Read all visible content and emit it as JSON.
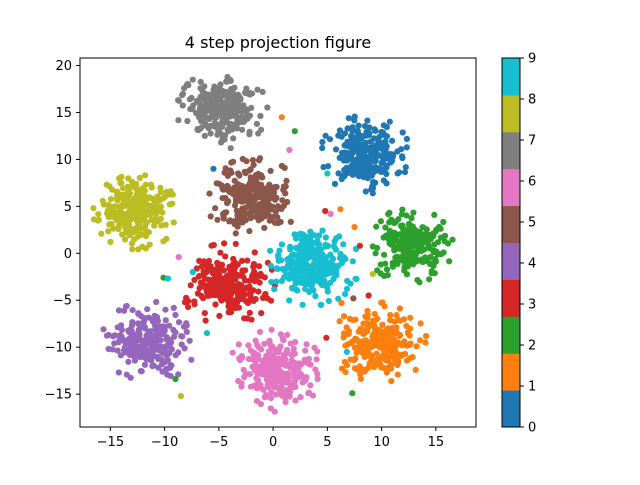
{
  "chart_data": {
    "type": "scatter",
    "title": "4 step projection figure",
    "xlabel": "",
    "ylabel": "",
    "xlim": [
      -17.8,
      18.7
    ],
    "ylim": [
      -18.5,
      20.8
    ],
    "xticks": [
      -15,
      -10,
      -5,
      0,
      5,
      10,
      15
    ],
    "yticks": [
      -15,
      -10,
      -5,
      0,
      5,
      10,
      15,
      20
    ],
    "grid": false,
    "colorbar": {
      "ticks": [
        0,
        1,
        2,
        3,
        4,
        5,
        6,
        7,
        8,
        9
      ],
      "colors": [
        "#1f77b4",
        "#ff7f0e",
        "#2ca02c",
        "#d62728",
        "#9467bd",
        "#8c564b",
        "#e377c2",
        "#7f7f7f",
        "#bcbd22",
        "#17becf"
      ]
    },
    "series": [
      {
        "class": 0,
        "center": [
          8.5,
          10.5
        ],
        "spread": 2.2,
        "count": 260
      },
      {
        "class": 1,
        "center": [
          9.8,
          -9.6
        ],
        "spread": 2.3,
        "count": 260
      },
      {
        "class": 2,
        "center": [
          12.6,
          0.8
        ],
        "spread": 2.1,
        "count": 260
      },
      {
        "class": 3,
        "center": [
          -4.2,
          -3.3
        ],
        "spread": 2.3,
        "count": 260
      },
      {
        "class": 4,
        "center": [
          -11.5,
          -9.5
        ],
        "spread": 2.3,
        "count": 260
      },
      {
        "class": 5,
        "center": [
          -1.8,
          5.8
        ],
        "spread": 2.3,
        "count": 260
      },
      {
        "class": 6,
        "center": [
          0.2,
          -12.5
        ],
        "spread": 2.3,
        "count": 260
      },
      {
        "class": 7,
        "center": [
          -4.7,
          15.3
        ],
        "spread": 2.2,
        "count": 260
      },
      {
        "class": 8,
        "center": [
          -12.6,
          4.4
        ],
        "spread": 2.1,
        "count": 260
      },
      {
        "class": 9,
        "center": [
          3.6,
          -1.2
        ],
        "spread": 2.3,
        "count": 260
      }
    ],
    "outliers": [
      {
        "class": 1,
        "x": 0.8,
        "y": 14.5
      },
      {
        "class": 9,
        "x": 5.0,
        "y": 8.5
      },
      {
        "class": 2,
        "x": 2.0,
        "y": 13.0
      },
      {
        "class": 6,
        "x": 1.5,
        "y": 11.0
      },
      {
        "class": 0,
        "x": -5.5,
        "y": 9.0
      },
      {
        "class": 6,
        "x": 5.3,
        "y": 4.2
      },
      {
        "class": 3,
        "x": 4.8,
        "y": 4.5
      },
      {
        "class": 1,
        "x": 6.2,
        "y": 4.7
      },
      {
        "class": 1,
        "x": 7.5,
        "y": 2.8
      },
      {
        "class": 3,
        "x": 8.0,
        "y": 0.8
      },
      {
        "class": 8,
        "x": 9.2,
        "y": -2.2
      },
      {
        "class": 3,
        "x": 8.8,
        "y": -4.5
      },
      {
        "class": 2,
        "x": -10.1,
        "y": -2.6
      },
      {
        "class": 9,
        "x": -7.4,
        "y": -2.0
      },
      {
        "class": 8,
        "x": -8.5,
        "y": -15.2
      },
      {
        "class": 2,
        "x": -9.0,
        "y": -13.4
      },
      {
        "class": 2,
        "x": 7.3,
        "y": -14.9
      },
      {
        "class": 9,
        "x": -6.1,
        "y": -8.5
      },
      {
        "class": 3,
        "x": 4.9,
        "y": -9.0
      },
      {
        "class": 9,
        "x": 6.8,
        "y": -10.5
      },
      {
        "class": 9,
        "x": -9.7,
        "y": -2.7
      },
      {
        "class": 6,
        "x": -8.7,
        "y": -0.4
      },
      {
        "class": 1,
        "x": 6.3,
        "y": -5.3
      },
      {
        "class": 5,
        "x": 7.4,
        "y": -4.8
      }
    ]
  }
}
